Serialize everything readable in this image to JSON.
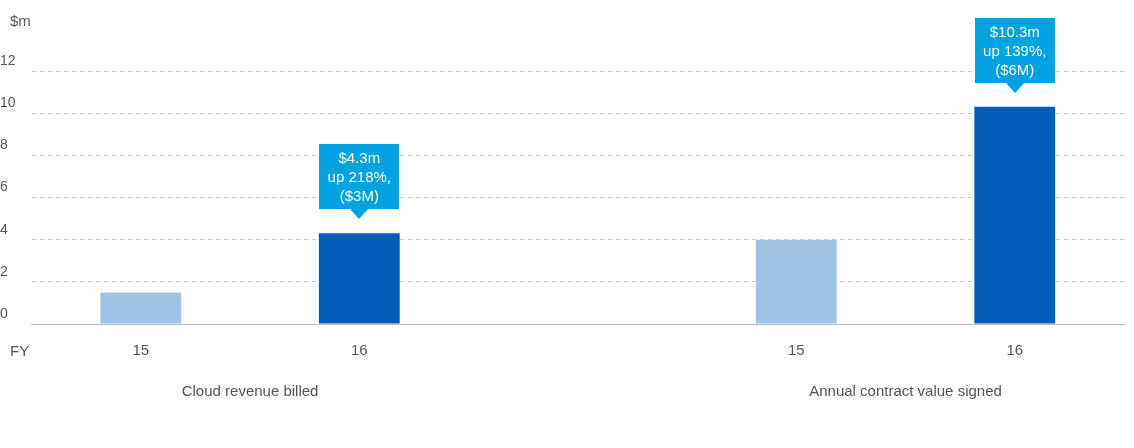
{
  "chart_data": {
    "type": "bar",
    "ylabel": "$m",
    "xlabel": "FY",
    "categories": [
      "15",
      "16",
      null,
      "15",
      "16"
    ],
    "values": [
      1.5,
      4.3,
      null,
      4.0,
      10.3
    ],
    "colors": [
      "#9dc3e6",
      "#005eb8",
      "#9dc3e6",
      "#9dc3e6",
      "#005eb8"
    ],
    "ylim": [
      0,
      12
    ],
    "yticks": [
      0,
      2,
      4,
      6,
      8,
      10,
      12
    ],
    "grid": "y",
    "legend": false,
    "annotations": [
      "Cloud revenue billed",
      "Annual contract value signed",
      "$4.3m\nup 218%,\n($3M)",
      "$10.3m\nup 139%,\n($6M)"
    ]
  }
}
